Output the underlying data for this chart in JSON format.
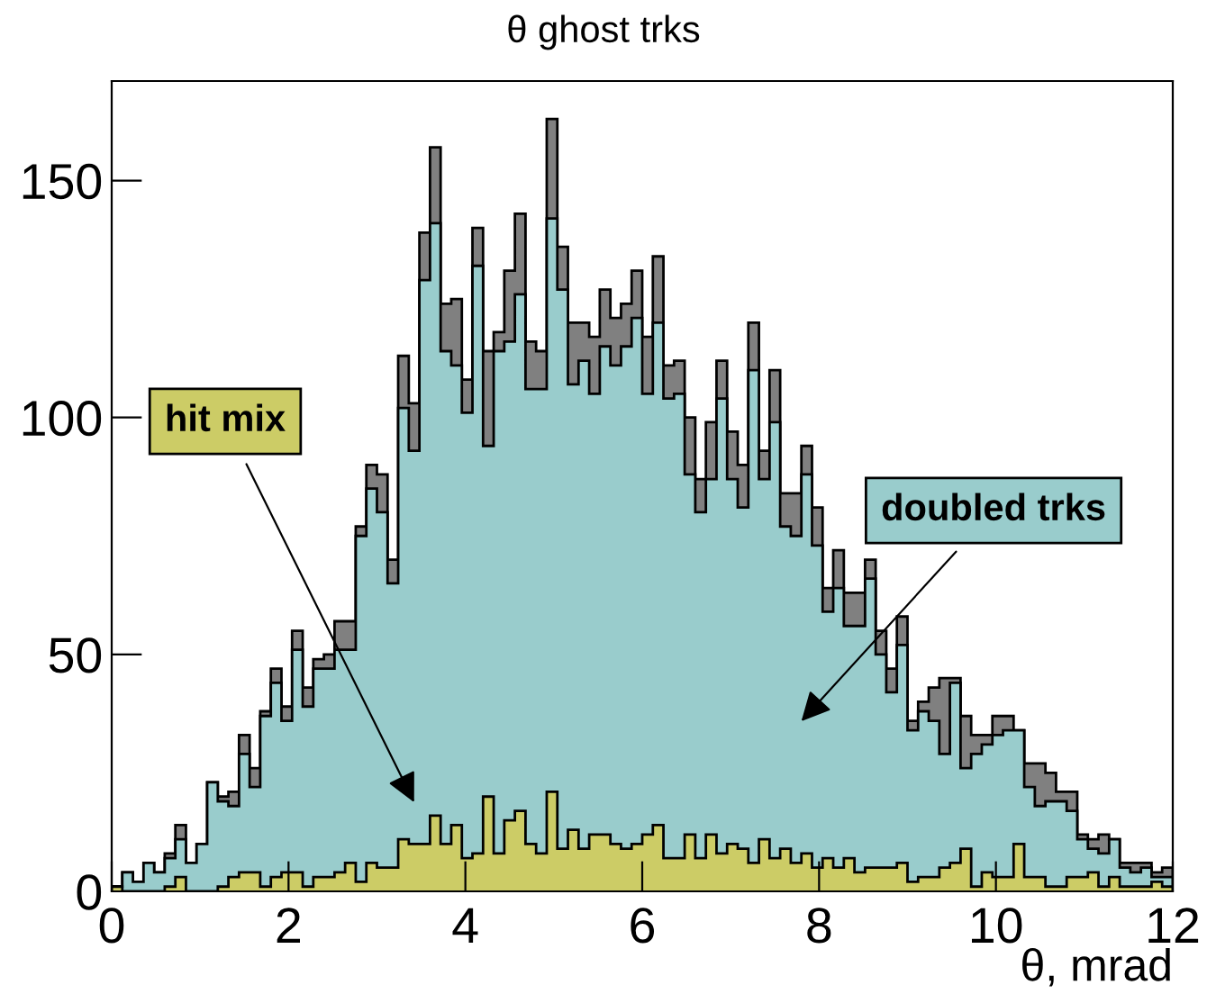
{
  "chart_data": {
    "type": "histogram",
    "title": "θ ghost trks",
    "xlabel": "θ, mrad",
    "bins": [
      0,
      0.12,
      0.24,
      0.36,
      0.48,
      0.6,
      0.72,
      0.84,
      0.96,
      1.08,
      1.2,
      1.32,
      1.44,
      1.56,
      1.68,
      1.8,
      1.92,
      2.04,
      2.16,
      2.28,
      2.4,
      2.52,
      2.64,
      2.76,
      2.88,
      3,
      3.12,
      3.24,
      3.36,
      3.48,
      3.6,
      3.72,
      3.84,
      3.96,
      4.08,
      4.2,
      4.32,
      4.44,
      4.56,
      4.68,
      4.8,
      4.92,
      5.04,
      5.16,
      5.28,
      5.4,
      5.52,
      5.64,
      5.76,
      5.88,
      6,
      6.12,
      6.24,
      6.36,
      6.48,
      6.6,
      6.72,
      6.84,
      6.96,
      7.08,
      7.2,
      7.32,
      7.44,
      7.56,
      7.68,
      7.8,
      7.92,
      8.04,
      8.16,
      8.28,
      8.4,
      8.52,
      8.64,
      8.76,
      8.88,
      9,
      9.12,
      9.24,
      9.36,
      9.48,
      9.6,
      9.72,
      9.84,
      9.96,
      10.08,
      10.2,
      10.32,
      10.44,
      10.56,
      10.68,
      10.8,
      10.92,
      11.04,
      11.16,
      11.28,
      11.4,
      11.52,
      11.64,
      11.76,
      11.88,
      12
    ],
    "series": [
      {
        "color": "#808080",
        "values": [
          1,
          4,
          2,
          6,
          4,
          8,
          14,
          6,
          10,
          23,
          20,
          21,
          33,
          26,
          38,
          47,
          39,
          55,
          43,
          49,
          50,
          57,
          57,
          77,
          90,
          88,
          70,
          113,
          103,
          139,
          157,
          124,
          125,
          108,
          140,
          114,
          118,
          131,
          143,
          116,
          114,
          163,
          136,
          120,
          120,
          117,
          127,
          121,
          124,
          131,
          117,
          134,
          111,
          112,
          100,
          87,
          99,
          112,
          97,
          90,
          120,
          93,
          110,
          84,
          84,
          94,
          81,
          64,
          72,
          63,
          63,
          70,
          55,
          47,
          58,
          36,
          40,
          43,
          45,
          45,
          37,
          33,
          33,
          37,
          37,
          34,
          27,
          27,
          25,
          21,
          21,
          12,
          11,
          12,
          11,
          6,
          6,
          6,
          4,
          5
        ]
      },
      {
        "name": "doubled trks",
        "color": "#99cccc",
        "values": [
          1,
          4,
          2,
          6,
          4,
          7,
          11,
          6,
          10,
          23,
          19,
          18,
          29,
          22,
          37,
          44,
          36,
          51,
          39,
          47,
          47,
          51,
          51,
          75,
          85,
          80,
          65,
          102,
          93,
          129,
          141,
          114,
          111,
          101,
          132,
          94,
          114,
          116,
          126,
          106,
          106,
          142,
          127,
          107,
          112,
          105,
          115,
          111,
          115,
          121,
          105,
          120,
          104,
          105,
          88,
          80,
          87,
          104,
          87,
          81,
          110,
          87,
          99,
          77,
          75,
          88,
          73,
          59,
          64,
          56,
          56,
          66,
          50,
          42,
          52,
          34,
          38,
          36,
          29,
          44,
          26,
          29,
          31,
          33,
          34,
          34,
          22,
          18,
          19,
          19,
          17,
          11,
          9,
          8,
          11,
          5,
          4,
          5,
          3,
          3
        ]
      },
      {
        "name": "hit mix",
        "color": "#cccc66",
        "values": [
          1,
          0,
          0,
          0,
          0,
          1,
          3,
          0,
          0,
          0,
          1,
          3,
          4,
          4,
          1,
          3,
          4,
          4,
          1,
          3,
          3,
          4,
          6,
          2,
          6,
          5,
          5,
          11,
          10,
          10,
          16,
          10,
          14,
          7,
          8,
          20,
          8,
          15,
          17,
          10,
          8,
          21,
          9,
          13,
          9,
          12,
          12,
          10,
          9,
          10,
          12,
          14,
          7,
          7,
          12,
          7,
          12,
          8,
          10,
          9,
          6,
          11,
          7,
          9,
          6,
          8,
          5,
          7,
          5,
          7,
          4,
          5,
          5,
          5,
          6,
          2,
          3,
          3,
          5,
          6,
          9,
          1,
          4,
          3,
          3,
          10,
          3,
          3,
          1,
          1,
          3,
          3,
          4,
          1,
          3,
          1,
          1,
          1,
          2,
          1
        ]
      }
    ],
    "xlim": [
      0,
      12
    ],
    "xticks": [
      0,
      2,
      4,
      6,
      8,
      10,
      12
    ],
    "ylim": [
      0,
      171
    ],
    "yticks": [
      0,
      50,
      100,
      150
    ],
    "grid": false,
    "legend": "left"
  }
}
